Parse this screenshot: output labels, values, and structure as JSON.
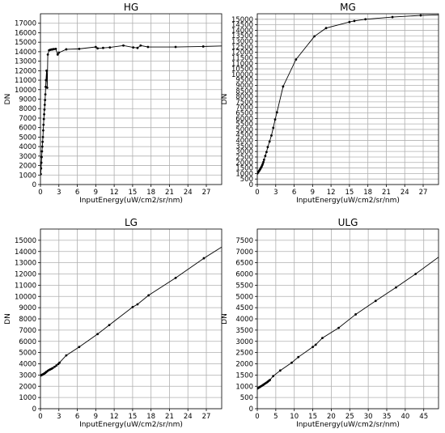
{
  "chart_data": [
    {
      "type": "line",
      "title": "HG",
      "xlabel": "InputEnergy(uW/cm2/sr/nm)",
      "ylabel": "DN",
      "xlim": [
        0,
        29.5
      ],
      "ylim": [
        0,
        18000
      ],
      "xticks": [
        0,
        3,
        6,
        9,
        12,
        15,
        18,
        21,
        24,
        27
      ],
      "yticks": [
        0,
        1000,
        2000,
        3000,
        4000,
        5000,
        6000,
        7000,
        8000,
        9000,
        10000,
        11000,
        12000,
        13000,
        14000,
        15000,
        16000,
        17000
      ],
      "grid": true,
      "series": [
        {
          "x": [
            0.05,
            0.1,
            0.15,
            0.2,
            0.25,
            0.3,
            0.35,
            0.4,
            0.45,
            0.5,
            0.55,
            0.6,
            0.65,
            0.7,
            0.75,
            0.8,
            0.85,
            0.9,
            1.0,
            1.1,
            1.2,
            1.4,
            1.6,
            1.8,
            2.0,
            2.2,
            2.5,
            2.8,
            3.0,
            4.2,
            6.3,
            9.0,
            9.3,
            10.2,
            11.3,
            13.5,
            15.1,
            15.8,
            16.3,
            17.5,
            22.0,
            26.5,
            29.5
          ],
          "y": [
            1100,
            1700,
            2300,
            2900,
            3500,
            4000,
            4500,
            5000,
            5700,
            6300,
            6900,
            7400,
            7900,
            8400,
            8900,
            9500,
            10300,
            11000,
            12000,
            10200,
            13700,
            14150,
            14200,
            14230,
            14250,
            14280,
            14300,
            13700,
            13900,
            14250,
            14300,
            14500,
            14350,
            14400,
            14450,
            14650,
            14450,
            14400,
            14650,
            14500,
            14500,
            14550,
            14600
          ]
        }
      ]
    },
    {
      "type": "line",
      "title": "MG",
      "xlabel": "InputEnergy(uW/cm2/sr/nm)",
      "ylabel": "DN",
      "xlim": [
        0,
        29.5
      ],
      "ylim": [
        0,
        15500
      ],
      "xticks": [
        0,
        3,
        6,
        9,
        12,
        15,
        18,
        21,
        24,
        27
      ],
      "yticks": [
        0,
        500,
        1000,
        1500,
        2000,
        2500,
        3000,
        3500,
        4000,
        4500,
        5000,
        5500,
        6000,
        6500,
        7000,
        7500,
        8000,
        8500,
        9000,
        9500,
        10000,
        10500,
        11000,
        11500,
        12000,
        12500,
        13000,
        13500,
        14000,
        14500,
        15000
      ],
      "grid": true,
      "series": [
        {
          "x": [
            0.0,
            0.1,
            0.2,
            0.3,
            0.4,
            0.5,
            0.6,
            0.7,
            0.8,
            0.9,
            1.0,
            1.1,
            1.3,
            1.5,
            1.7,
            2.0,
            2.3,
            2.6,
            2.9,
            3.2,
            4.2,
            6.3,
            9.3,
            11.2,
            15.0,
            15.8,
            17.6,
            22.0,
            26.6,
            29.5
          ],
          "y": [
            1000,
            1080,
            1160,
            1240,
            1330,
            1420,
            1520,
            1620,
            1750,
            1880,
            2050,
            2250,
            2600,
            2950,
            3400,
            3900,
            4450,
            5150,
            5900,
            6550,
            8900,
            11350,
            13450,
            14200,
            14750,
            14850,
            15000,
            15200,
            15350,
            15400
          ]
        }
      ]
    },
    {
      "type": "line",
      "title": "LG",
      "xlabel": "InputEnergy(uW/cm2/sr/nm)",
      "ylabel": "DN",
      "xlim": [
        0,
        29.5
      ],
      "ylim": [
        0,
        16000
      ],
      "xticks": [
        0,
        3,
        6,
        9,
        12,
        15,
        18,
        21,
        24,
        27
      ],
      "yticks": [
        0,
        1000,
        2000,
        3000,
        4000,
        5000,
        6000,
        7000,
        8000,
        9000,
        10000,
        11000,
        12000,
        13000,
        14000,
        15000
      ],
      "grid": true,
      "series": [
        {
          "x": [
            0.0,
            0.1,
            0.2,
            0.3,
            0.4,
            0.5,
            0.6,
            0.7,
            0.8,
            0.9,
            1.0,
            1.2,
            1.4,
            1.6,
            1.8,
            2.0,
            2.3,
            2.6,
            2.9,
            3.1,
            4.2,
            6.3,
            9.3,
            11.2,
            15.0,
            15.8,
            17.6,
            22.0,
            26.6,
            29.5
          ],
          "y": [
            2950,
            2980,
            3000,
            3030,
            3060,
            3090,
            3120,
            3160,
            3200,
            3250,
            3300,
            3380,
            3450,
            3500,
            3560,
            3620,
            3730,
            3850,
            3980,
            4100,
            4750,
            5500,
            6650,
            7450,
            9050,
            9300,
            10100,
            11650,
            13400,
            14400
          ]
        }
      ]
    },
    {
      "type": "line",
      "title": "ULG",
      "xlabel": "InputEnergy(uW/cm2/sr/nm)",
      "ylabel": "DN",
      "xlim": [
        0,
        49
      ],
      "ylim": [
        0,
        8000
      ],
      "xticks": [
        0,
        5,
        10,
        15,
        20,
        25,
        30,
        35,
        40,
        45
      ],
      "yticks": [
        0,
        500,
        1000,
        1500,
        2000,
        2500,
        3000,
        3500,
        4000,
        4500,
        5000,
        5500,
        6000,
        6500,
        7000,
        7500
      ],
      "grid": true,
      "series": [
        {
          "x": [
            0.0,
            0.2,
            0.4,
            0.6,
            0.8,
            1.0,
            1.3,
            1.6,
            1.9,
            2.2,
            2.5,
            2.8,
            3.1,
            3.4,
            4.3,
            6.2,
            9.3,
            11.1,
            15.0,
            15.8,
            17.6,
            22.0,
            26.6,
            32.0,
            37.5,
            42.8,
            49.0
          ],
          "y": [
            900,
            920,
            940,
            960,
            980,
            1000,
            1030,
            1060,
            1100,
            1130,
            1160,
            1200,
            1240,
            1280,
            1450,
            1700,
            2050,
            2300,
            2750,
            2850,
            3150,
            3600,
            4200,
            4800,
            5400,
            6000,
            6750
          ]
        }
      ]
    }
  ]
}
